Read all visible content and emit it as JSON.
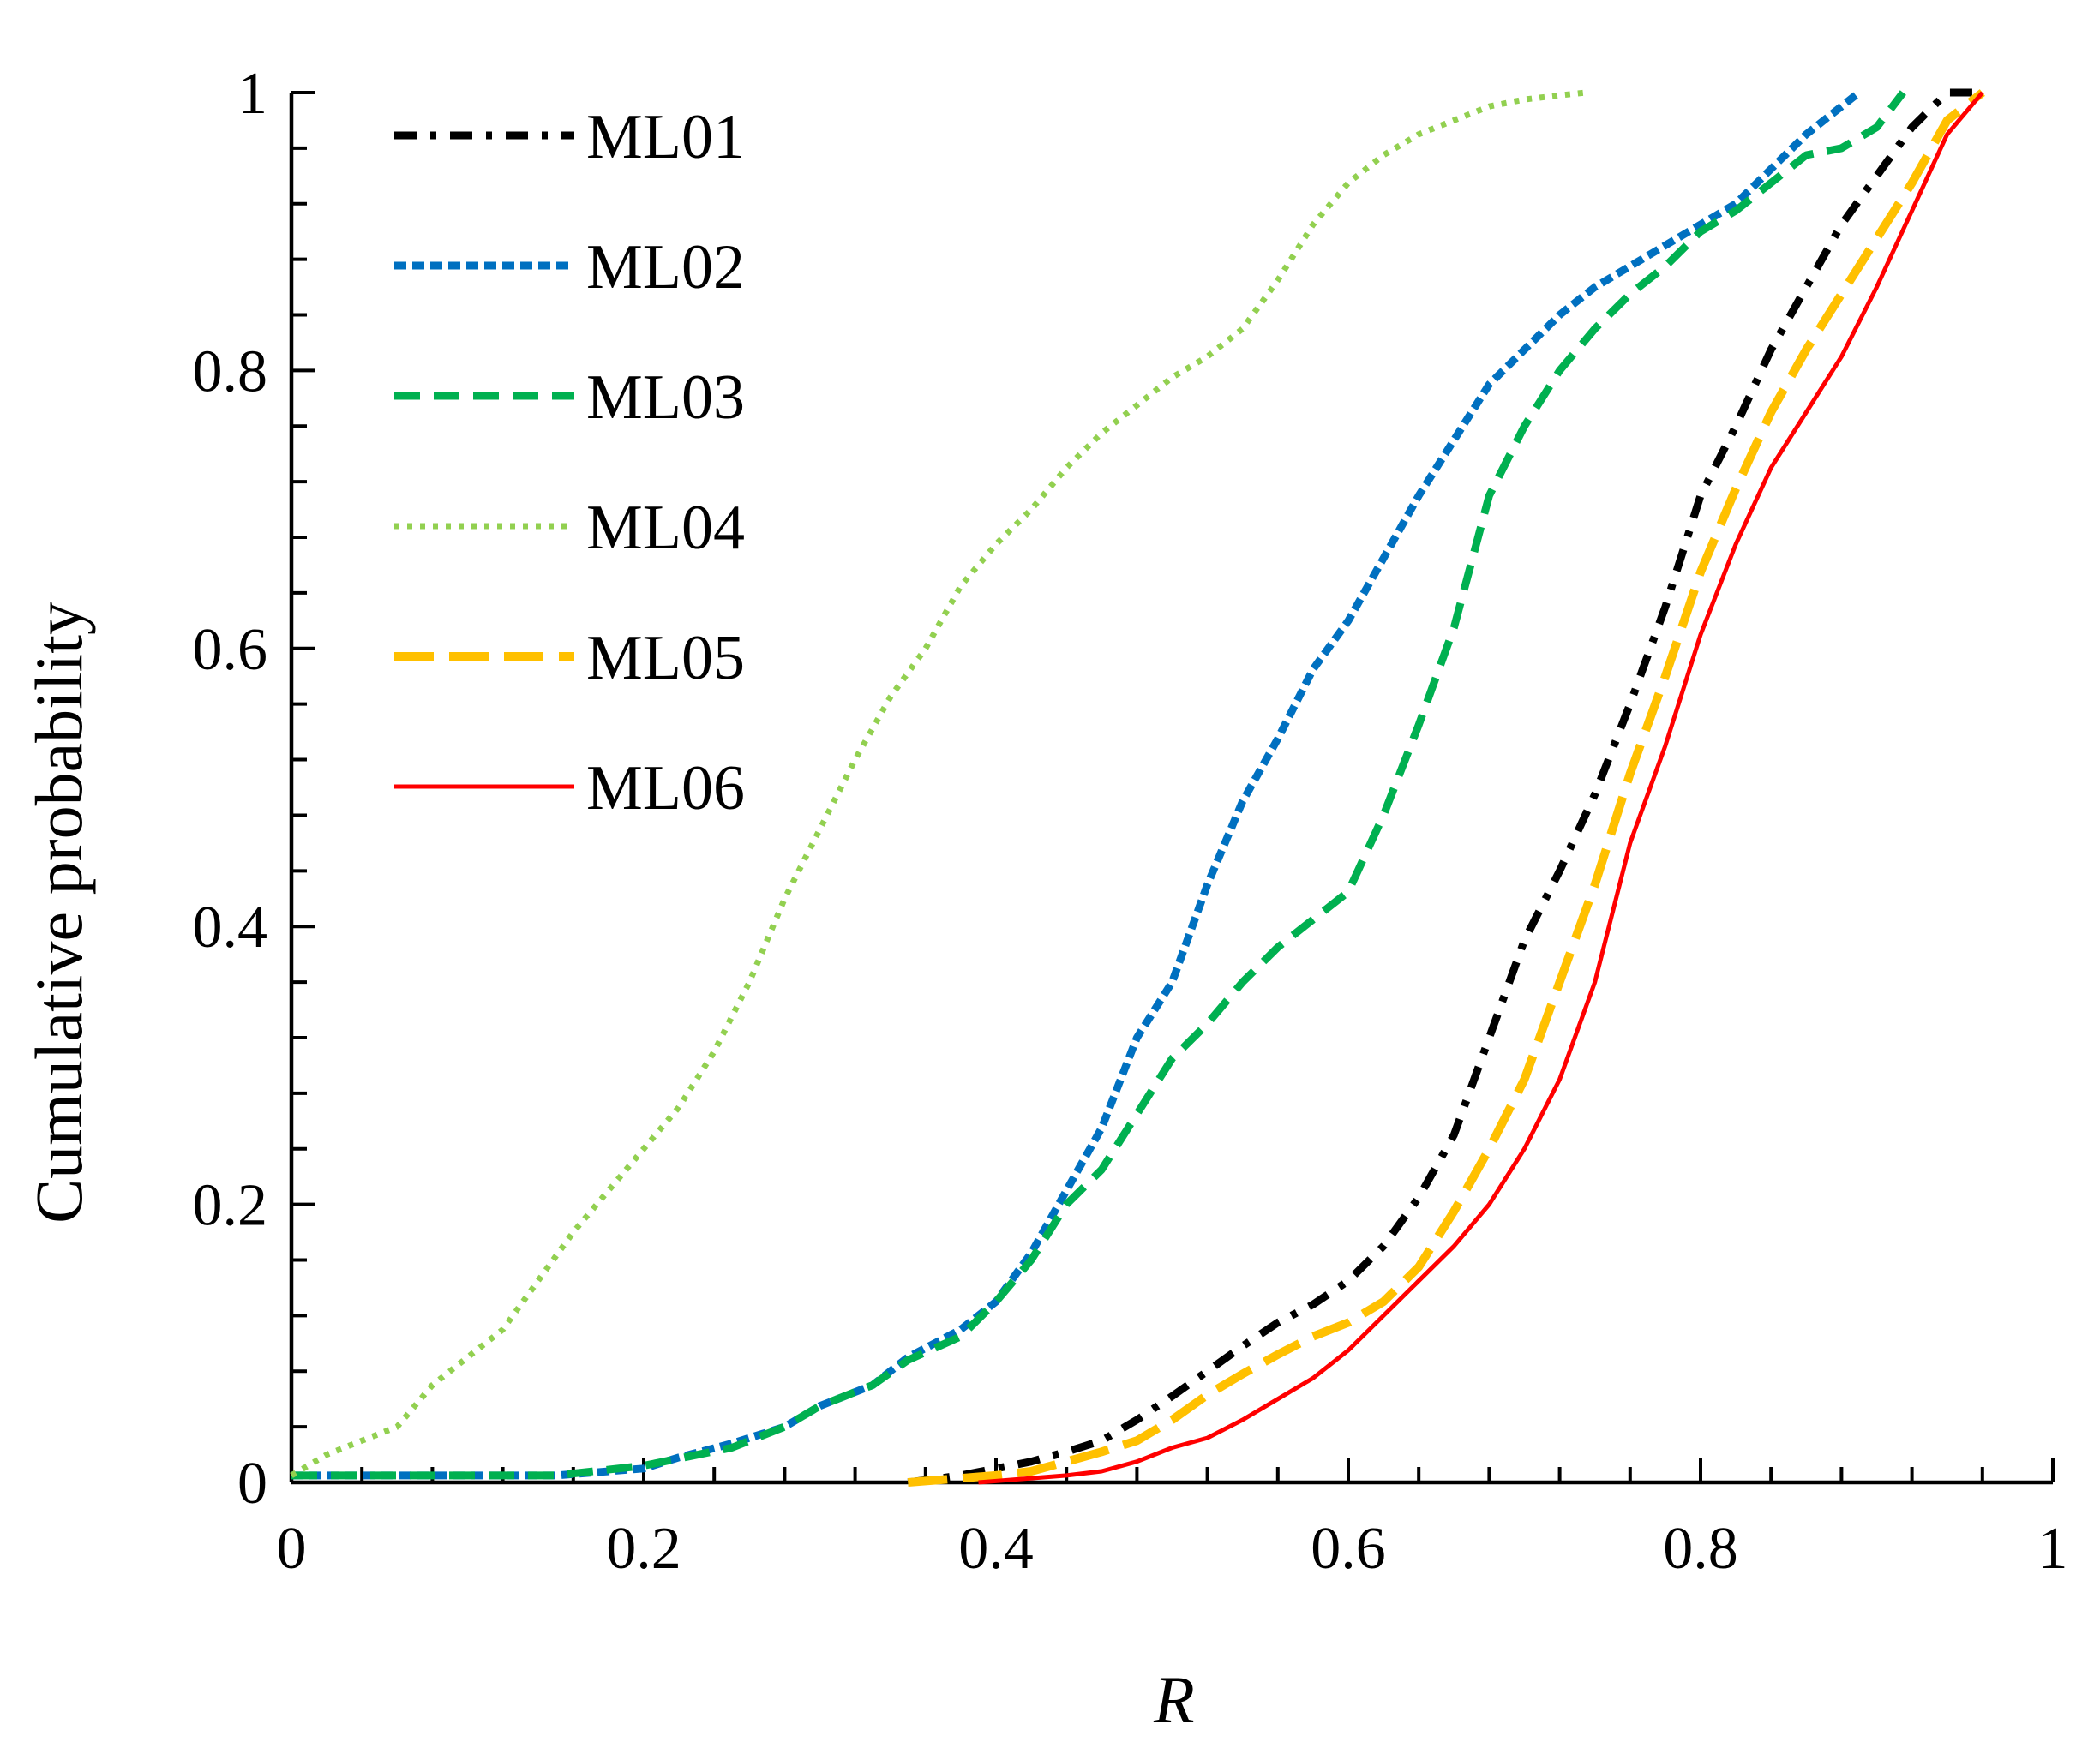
{
  "chart_data": {
    "type": "line",
    "title": "",
    "xlabel": "R",
    "ylabel": "Cumulative probability",
    "xlim": [
      0,
      1
    ],
    "ylim": [
      0,
      1
    ],
    "xticks": [
      "0",
      "0.2",
      "0.4",
      "0.6",
      "0.8",
      "1"
    ],
    "yticks": [
      "0",
      "0.2",
      "0.4",
      "0.6",
      "0.8",
      "1"
    ],
    "grid": false,
    "legend_position": "top-left",
    "series": [
      {
        "name": "ML01",
        "color": "#000000",
        "style": "dash-dot",
        "x": [
          0.35,
          0.38,
          0.4,
          0.42,
          0.44,
          0.46,
          0.48,
          0.5,
          0.52,
          0.54,
          0.56,
          0.58,
          0.6,
          0.62,
          0.64,
          0.66,
          0.68,
          0.7,
          0.72,
          0.74,
          0.76,
          0.78,
          0.8,
          0.82,
          0.84,
          0.86,
          0.88,
          0.9,
          0.92,
          0.94,
          0.96
        ],
        "y": [
          0.0,
          0.005,
          0.01,
          0.015,
          0.022,
          0.03,
          0.045,
          0.062,
          0.08,
          0.098,
          0.115,
          0.128,
          0.145,
          0.17,
          0.205,
          0.25,
          0.32,
          0.39,
          0.44,
          0.495,
          0.56,
          0.63,
          0.71,
          0.76,
          0.815,
          0.86,
          0.905,
          0.94,
          0.975,
          1.0,
          1.0
        ]
      },
      {
        "name": "ML02",
        "color": "#0070C0",
        "style": "short-dash",
        "x": [
          0.0,
          0.05,
          0.1,
          0.15,
          0.2,
          0.22,
          0.25,
          0.28,
          0.3,
          0.33,
          0.35,
          0.38,
          0.4,
          0.42,
          0.44,
          0.46,
          0.48,
          0.5,
          0.52,
          0.54,
          0.56,
          0.58,
          0.6,
          0.62,
          0.64,
          0.66,
          0.68,
          0.7,
          0.72,
          0.74,
          0.76,
          0.78,
          0.8,
          0.82,
          0.84,
          0.86,
          0.88,
          0.89
        ],
        "y": [
          0.005,
          0.005,
          0.005,
          0.005,
          0.01,
          0.018,
          0.028,
          0.04,
          0.055,
          0.07,
          0.09,
          0.11,
          0.13,
          0.165,
          0.21,
          0.255,
          0.32,
          0.36,
          0.43,
          0.49,
          0.535,
          0.585,
          0.62,
          0.665,
          0.71,
          0.75,
          0.79,
          0.815,
          0.84,
          0.86,
          0.875,
          0.89,
          0.905,
          0.92,
          0.945,
          0.97,
          0.99,
          1.0
        ]
      },
      {
        "name": "ML03",
        "color": "#00B050",
        "style": "dash",
        "x": [
          0.0,
          0.05,
          0.1,
          0.15,
          0.2,
          0.25,
          0.28,
          0.3,
          0.33,
          0.35,
          0.38,
          0.4,
          0.42,
          0.44,
          0.46,
          0.48,
          0.5,
          0.52,
          0.54,
          0.56,
          0.58,
          0.6,
          0.62,
          0.64,
          0.66,
          0.68,
          0.7,
          0.72,
          0.74,
          0.76,
          0.78,
          0.8,
          0.82,
          0.84,
          0.86,
          0.88,
          0.9,
          0.915
        ],
        "y": [
          0.005,
          0.005,
          0.005,
          0.005,
          0.012,
          0.025,
          0.04,
          0.055,
          0.07,
          0.088,
          0.105,
          0.13,
          0.16,
          0.2,
          0.225,
          0.265,
          0.305,
          0.33,
          0.36,
          0.385,
          0.405,
          0.425,
          0.48,
          0.545,
          0.615,
          0.71,
          0.76,
          0.8,
          0.83,
          0.855,
          0.875,
          0.9,
          0.915,
          0.935,
          0.955,
          0.96,
          0.975,
          1.0
        ]
      },
      {
        "name": "ML04",
        "color": "#92D050",
        "style": "dot",
        "x": [
          0.0,
          0.02,
          0.04,
          0.06,
          0.08,
          0.1,
          0.12,
          0.14,
          0.16,
          0.18,
          0.2,
          0.22,
          0.24,
          0.26,
          0.28,
          0.3,
          0.32,
          0.34,
          0.36,
          0.38,
          0.4,
          0.42,
          0.44,
          0.46,
          0.48,
          0.5,
          0.52,
          0.54,
          0.56,
          0.58,
          0.6,
          0.62,
          0.64,
          0.66,
          0.68,
          0.7,
          0.72,
          0.735
        ],
        "y": [
          0.005,
          0.02,
          0.03,
          0.04,
          0.07,
          0.09,
          0.11,
          0.145,
          0.18,
          0.21,
          0.24,
          0.27,
          0.31,
          0.36,
          0.42,
          0.47,
          0.52,
          0.565,
          0.6,
          0.645,
          0.675,
          0.7,
          0.73,
          0.755,
          0.775,
          0.795,
          0.81,
          0.83,
          0.865,
          0.905,
          0.935,
          0.955,
          0.97,
          0.98,
          0.99,
          0.995,
          0.998,
          1.0
        ]
      },
      {
        "name": "ML05",
        "color": "#FFC000",
        "style": "long-dash",
        "x": [
          0.35,
          0.38,
          0.4,
          0.42,
          0.44,
          0.46,
          0.48,
          0.5,
          0.52,
          0.54,
          0.56,
          0.58,
          0.6,
          0.62,
          0.64,
          0.66,
          0.68,
          0.7,
          0.72,
          0.74,
          0.76,
          0.78,
          0.8,
          0.82,
          0.84,
          0.86,
          0.88,
          0.9,
          0.92,
          0.94,
          0.96
        ],
        "y": [
          0.0,
          0.003,
          0.005,
          0.008,
          0.015,
          0.022,
          0.03,
          0.045,
          0.063,
          0.078,
          0.092,
          0.105,
          0.115,
          0.13,
          0.155,
          0.195,
          0.24,
          0.29,
          0.36,
          0.43,
          0.51,
          0.58,
          0.655,
          0.715,
          0.77,
          0.815,
          0.855,
          0.895,
          0.935,
          0.98,
          1.0
        ]
      },
      {
        "name": "ML06",
        "color": "#FF0000",
        "style": "solid",
        "x": [
          0.39,
          0.42,
          0.44,
          0.46,
          0.48,
          0.5,
          0.52,
          0.54,
          0.56,
          0.58,
          0.6,
          0.62,
          0.64,
          0.66,
          0.68,
          0.7,
          0.72,
          0.74,
          0.76,
          0.78,
          0.8,
          0.82,
          0.84,
          0.86,
          0.88,
          0.9,
          0.92,
          0.94,
          0.96
        ],
        "y": [
          0.0,
          0.003,
          0.005,
          0.008,
          0.015,
          0.025,
          0.032,
          0.045,
          0.06,
          0.075,
          0.095,
          0.12,
          0.145,
          0.17,
          0.2,
          0.24,
          0.29,
          0.36,
          0.46,
          0.53,
          0.61,
          0.675,
          0.73,
          0.77,
          0.81,
          0.86,
          0.915,
          0.97,
          1.0
        ]
      }
    ]
  }
}
